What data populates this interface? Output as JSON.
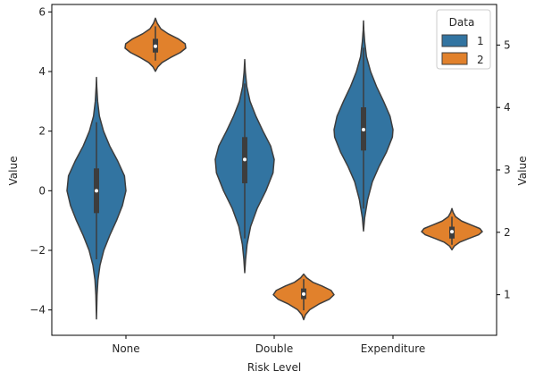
{
  "chart_data": {
    "type": "violin",
    "xlabel": "Risk Level",
    "ylabel_left": "Value",
    "ylabel_right": "Value",
    "categories": [
      "None",
      "Double",
      "Expenditure"
    ],
    "left_axis": {
      "ylim": [
        -4.85,
        6.25
      ],
      "ticks": [
        -4,
        -2,
        0,
        2,
        4,
        6
      ]
    },
    "right_axis": {
      "ylim": [
        0.35,
        5.65
      ],
      "ticks": [
        1,
        2,
        3,
        4,
        5
      ]
    },
    "legend": {
      "title": "Data",
      "position": "top-right",
      "entries": [
        "1",
        "2"
      ]
    },
    "colors": {
      "1": "#3274a1",
      "2": "#e1812c",
      "edge": "#3d3d3d"
    },
    "series": [
      {
        "name": "1",
        "axis": "left",
        "violins": [
          {
            "category": "None",
            "min": -4.3,
            "max": 3.8,
            "q1": -0.75,
            "median": 0.0,
            "q3": 0.75,
            "whisker_low": -2.3,
            "whisker_high": 2.3,
            "profile": [
              [
                -4.3,
                0.0
              ],
              [
                -3.5,
                0.02
              ],
              [
                -3.0,
                0.05
              ],
              [
                -2.5,
                0.12
              ],
              [
                -2.0,
                0.25
              ],
              [
                -1.5,
                0.45
              ],
              [
                -1.0,
                0.68
              ],
              [
                -0.5,
                0.88
              ],
              [
                0.0,
                1.0
              ],
              [
                0.5,
                0.95
              ],
              [
                1.0,
                0.72
              ],
              [
                1.5,
                0.45
              ],
              [
                2.0,
                0.24
              ],
              [
                2.5,
                0.1
              ],
              [
                3.0,
                0.04
              ],
              [
                3.5,
                0.01
              ],
              [
                3.8,
                0.0
              ]
            ]
          },
          {
            "category": "Double",
            "min": -2.75,
            "max": 4.4,
            "q1": 0.25,
            "median": 1.05,
            "q3": 1.8,
            "whisker_low": -1.6,
            "whisker_high": 3.6,
            "profile": [
              [
                -2.75,
                0.0
              ],
              [
                -2.3,
                0.03
              ],
              [
                -1.8,
                0.08
              ],
              [
                -1.2,
                0.2
              ],
              [
                -0.6,
                0.42
              ],
              [
                0.0,
                0.72
              ],
              [
                0.6,
                0.96
              ],
              [
                1.05,
                1.0
              ],
              [
                1.5,
                0.88
              ],
              [
                2.0,
                0.62
              ],
              [
                2.5,
                0.38
              ],
              [
                3.0,
                0.18
              ],
              [
                3.5,
                0.07
              ],
              [
                4.0,
                0.02
              ],
              [
                4.4,
                0.0
              ]
            ]
          },
          {
            "category": "Expenditure",
            "min": -1.35,
            "max": 5.7,
            "q1": 1.35,
            "median": 2.05,
            "q3": 2.8,
            "whisker_low": -0.6,
            "whisker_high": 4.8,
            "profile": [
              [
                -1.35,
                0.0
              ],
              [
                -0.9,
                0.04
              ],
              [
                -0.3,
                0.14
              ],
              [
                0.3,
                0.3
              ],
              [
                0.8,
                0.52
              ],
              [
                1.3,
                0.78
              ],
              [
                1.8,
                0.98
              ],
              [
                2.05,
                1.0
              ],
              [
                2.5,
                0.9
              ],
              [
                3.0,
                0.68
              ],
              [
                3.5,
                0.44
              ],
              [
                4.0,
                0.24
              ],
              [
                4.5,
                0.1
              ],
              [
                5.0,
                0.04
              ],
              [
                5.4,
                0.01
              ],
              [
                5.7,
                0.0
              ]
            ]
          }
        ]
      },
      {
        "name": "2",
        "axis": "right",
        "violins": [
          {
            "category": "None",
            "min": 4.58,
            "max": 5.43,
            "q1": 4.88,
            "median": 4.98,
            "q3": 5.1,
            "whisker_low": 4.75,
            "whisker_high": 5.3,
            "profile": [
              [
                4.58,
                0.0
              ],
              [
                4.65,
                0.08
              ],
              [
                4.72,
                0.22
              ],
              [
                4.8,
                0.5
              ],
              [
                4.88,
                0.82
              ],
              [
                4.95,
                1.0
              ],
              [
                5.02,
                0.98
              ],
              [
                5.1,
                0.75
              ],
              [
                5.18,
                0.42
              ],
              [
                5.26,
                0.18
              ],
              [
                5.35,
                0.06
              ],
              [
                5.43,
                0.0
              ]
            ]
          },
          {
            "category": "Double",
            "min": 0.6,
            "max": 1.33,
            "q1": 0.93,
            "median": 1.01,
            "q3": 1.1,
            "whisker_low": 0.75,
            "whisker_high": 1.25,
            "profile": [
              [
                0.6,
                0.0
              ],
              [
                0.68,
                0.06
              ],
              [
                0.76,
                0.2
              ],
              [
                0.85,
                0.5
              ],
              [
                0.93,
                0.85
              ],
              [
                1.0,
                1.0
              ],
              [
                1.07,
                0.9
              ],
              [
                1.14,
                0.6
              ],
              [
                1.2,
                0.3
              ],
              [
                1.27,
                0.1
              ],
              [
                1.33,
                0.0
              ]
            ]
          },
          {
            "category": "Expenditure",
            "min": 1.72,
            "max": 2.38,
            "q1": 1.9,
            "median": 2.01,
            "q3": 2.09,
            "whisker_low": 1.8,
            "whisker_high": 2.25,
            "profile": [
              [
                1.72,
                0.0
              ],
              [
                1.78,
                0.08
              ],
              [
                1.84,
                0.25
              ],
              [
                1.9,
                0.55
              ],
              [
                1.96,
                0.88
              ],
              [
                2.01,
                1.0
              ],
              [
                2.06,
                0.92
              ],
              [
                2.12,
                0.62
              ],
              [
                2.18,
                0.32
              ],
              [
                2.25,
                0.12
              ],
              [
                2.32,
                0.04
              ],
              [
                2.38,
                0.0
              ]
            ]
          }
        ]
      }
    ]
  }
}
